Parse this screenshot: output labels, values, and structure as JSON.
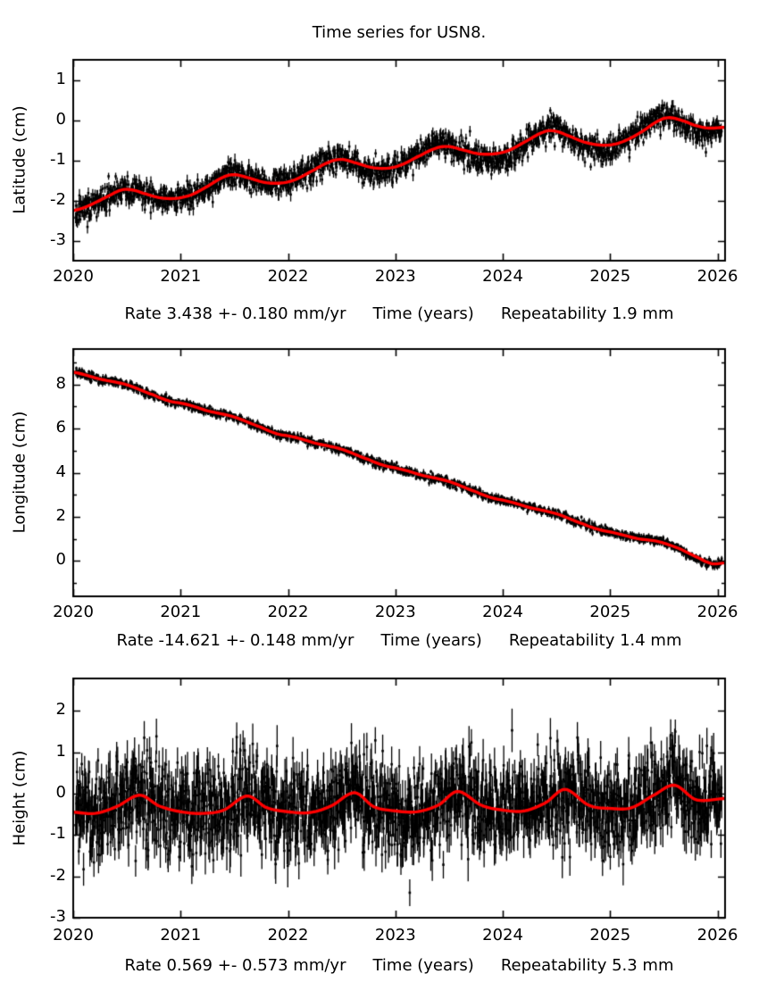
{
  "title": "Time series for USN8.",
  "colors": {
    "data": "#000000",
    "model": "#ff0000",
    "background": "#ffffff",
    "frame": "#000000"
  },
  "chart_data": [
    {
      "type": "scatter",
      "name": "latitude",
      "ylabel": "Latitude (cm)",
      "labels": {
        "rate": "Rate 3.438 +- 0.180 mm/yr",
        "xlabel": "Time (years)",
        "repeatability": "Repeatability 1.9 mm"
      },
      "xlim": [
        2020,
        2026.07
      ],
      "ylim": [
        -3.5,
        1.5
      ],
      "xticks": [
        2020,
        2021,
        2022,
        2023,
        2024,
        2025,
        2026
      ],
      "yticks": [
        1,
        0,
        -1,
        -2,
        -3
      ],
      "yticks_minor": [],
      "grid": false,
      "legend": "none",
      "data_x_range": [
        2020.02,
        2026.04
      ],
      "trend": [
        [
          2020.0,
          -2.25
        ],
        [
          2020.1,
          -2.18
        ],
        [
          2020.2,
          -2.06
        ],
        [
          2020.32,
          -1.9
        ],
        [
          2020.45,
          -1.74
        ],
        [
          2020.55,
          -1.74
        ],
        [
          2020.65,
          -1.82
        ],
        [
          2020.8,
          -1.93
        ],
        [
          2020.95,
          -1.95
        ],
        [
          2021.1,
          -1.86
        ],
        [
          2021.25,
          -1.65
        ],
        [
          2021.4,
          -1.42
        ],
        [
          2021.5,
          -1.36
        ],
        [
          2021.62,
          -1.43
        ],
        [
          2021.78,
          -1.55
        ],
        [
          2021.92,
          -1.57
        ],
        [
          2022.05,
          -1.5
        ],
        [
          2022.2,
          -1.3
        ],
        [
          2022.38,
          -1.05
        ],
        [
          2022.5,
          -0.98
        ],
        [
          2022.62,
          -1.06
        ],
        [
          2022.78,
          -1.18
        ],
        [
          2022.92,
          -1.2
        ],
        [
          2023.05,
          -1.12
        ],
        [
          2023.2,
          -0.92
        ],
        [
          2023.38,
          -0.7
        ],
        [
          2023.5,
          -0.66
        ],
        [
          2023.62,
          -0.74
        ],
        [
          2023.78,
          -0.84
        ],
        [
          2023.92,
          -0.84
        ],
        [
          2024.05,
          -0.76
        ],
        [
          2024.2,
          -0.55
        ],
        [
          2024.38,
          -0.3
        ],
        [
          2024.48,
          -0.27
        ],
        [
          2024.6,
          -0.38
        ],
        [
          2024.75,
          -0.54
        ],
        [
          2024.9,
          -0.62
        ],
        [
          2025.02,
          -0.61
        ],
        [
          2025.15,
          -0.5
        ],
        [
          2025.3,
          -0.28
        ],
        [
          2025.45,
          -0.02
        ],
        [
          2025.55,
          0.06
        ],
        [
          2025.68,
          -0.02
        ],
        [
          2025.8,
          -0.14
        ],
        [
          2025.92,
          -0.2
        ],
        [
          2026.07,
          -0.18
        ]
      ],
      "residual": [
        [
          2020.0,
          -0.05
        ],
        [
          2020.5,
          0.0
        ],
        [
          2021.3,
          -0.05
        ],
        [
          2021.5,
          0.0
        ],
        [
          2022.3,
          0.05
        ],
        [
          2022.55,
          0.0
        ],
        [
          2022.7,
          -0.08
        ],
        [
          2022.85,
          -0.08
        ],
        [
          2023.05,
          0.0
        ],
        [
          2023.3,
          0.08
        ],
        [
          2023.55,
          0.0
        ],
        [
          2023.8,
          -0.1
        ],
        [
          2024.0,
          -0.15
        ],
        [
          2024.2,
          -0.05
        ],
        [
          2024.45,
          0.1
        ],
        [
          2024.6,
          0.0
        ],
        [
          2024.8,
          -0.1
        ],
        [
          2025.0,
          -0.08
        ],
        [
          2025.2,
          0.05
        ],
        [
          2025.5,
          0.08
        ],
        [
          2025.7,
          -0.08
        ],
        [
          2025.85,
          -0.12
        ],
        [
          2026.07,
          -0.05
        ]
      ],
      "render": {
        "n_points": 1800,
        "noise_sigma": 0.16,
        "error_bar_half": 0.13,
        "seed": 11
      }
    },
    {
      "type": "scatter",
      "name": "longitude",
      "ylabel": "Longitude (cm)",
      "labels": {
        "rate": "Rate -14.621 +- 0.148 mm/yr",
        "xlabel": "Time (years)",
        "repeatability": "Repeatability 1.4 mm"
      },
      "xlim": [
        2020,
        2026.07
      ],
      "ylim": [
        -1.6,
        9.6
      ],
      "xticks": [
        2020,
        2021,
        2022,
        2023,
        2024,
        2025,
        2026
      ],
      "yticks": [
        8,
        6,
        4,
        2,
        0
      ],
      "yticks_minor": [
        9,
        7,
        5,
        3,
        1,
        -1
      ],
      "grid": false,
      "legend": "none",
      "data_x_range": [
        2020.02,
        2026.04
      ],
      "trend": [
        [
          2020.0,
          8.55
        ],
        [
          2020.25,
          8.24
        ],
        [
          2020.5,
          7.98
        ],
        [
          2020.75,
          7.52
        ],
        [
          2020.9,
          7.24
        ],
        [
          2021.05,
          7.1
        ],
        [
          2021.25,
          6.8
        ],
        [
          2021.5,
          6.52
        ],
        [
          2021.75,
          6.06
        ],
        [
          2021.9,
          5.76
        ],
        [
          2022.05,
          5.62
        ],
        [
          2022.25,
          5.34
        ],
        [
          2022.5,
          5.06
        ],
        [
          2022.75,
          4.6
        ],
        [
          2022.9,
          4.32
        ],
        [
          2023.05,
          4.16
        ],
        [
          2023.25,
          3.88
        ],
        [
          2023.5,
          3.6
        ],
        [
          2023.75,
          3.14
        ],
        [
          2023.9,
          2.86
        ],
        [
          2024.05,
          2.7
        ],
        [
          2024.25,
          2.42
        ],
        [
          2024.5,
          2.14
        ],
        [
          2024.75,
          1.68
        ],
        [
          2024.9,
          1.42
        ],
        [
          2025.05,
          1.26
        ],
        [
          2025.25,
          1.02
        ],
        [
          2025.45,
          0.88
        ],
        [
          2025.65,
          0.55
        ],
        [
          2025.82,
          0.15
        ],
        [
          2025.95,
          -0.12
        ],
        [
          2026.07,
          -0.08
        ]
      ],
      "residual": [
        [
          2020.0,
          0.0
        ],
        [
          2025.2,
          0.0
        ],
        [
          2025.4,
          0.06
        ],
        [
          2025.6,
          0.0
        ],
        [
          2025.85,
          -0.08
        ],
        [
          2026.07,
          0.0
        ]
      ],
      "render": {
        "n_points": 1800,
        "noise_sigma": 0.09,
        "error_bar_half": 0.11,
        "seed": 22
      }
    },
    {
      "type": "scatter",
      "name": "height",
      "ylabel": "Height (cm)",
      "labels": {
        "rate": "Rate 0.569 +- 0.573 mm/yr",
        "xlabel": "Time (years)",
        "repeatability": "Repeatability 5.3 mm"
      },
      "xlim": [
        2020,
        2026.07
      ],
      "ylim": [
        -3.0,
        2.78
      ],
      "xticks": [
        2020,
        2021,
        2022,
        2023,
        2024,
        2025,
        2026
      ],
      "yticks": [
        2,
        1,
        0,
        -1,
        -2,
        -3
      ],
      "yticks_minor": [],
      "grid": false,
      "legend": "none",
      "data_x_range": [
        2020.02,
        2026.04
      ],
      "trend": [
        [
          2020.0,
          -0.45
        ],
        [
          2020.2,
          -0.48
        ],
        [
          2020.4,
          -0.32
        ],
        [
          2020.62,
          -0.04
        ],
        [
          2020.8,
          -0.3
        ],
        [
          2021.0,
          -0.44
        ],
        [
          2021.2,
          -0.48
        ],
        [
          2021.4,
          -0.4
        ],
        [
          2021.62,
          -0.06
        ],
        [
          2021.8,
          -0.34
        ],
        [
          2022.0,
          -0.44
        ],
        [
          2022.2,
          -0.46
        ],
        [
          2022.4,
          -0.3
        ],
        [
          2022.62,
          0.02
        ],
        [
          2022.8,
          -0.32
        ],
        [
          2023.0,
          -0.42
        ],
        [
          2023.2,
          -0.44
        ],
        [
          2023.4,
          -0.28
        ],
        [
          2023.58,
          0.05
        ],
        [
          2023.8,
          -0.28
        ],
        [
          2024.0,
          -0.4
        ],
        [
          2024.2,
          -0.42
        ],
        [
          2024.4,
          -0.22
        ],
        [
          2024.58,
          0.1
        ],
        [
          2024.8,
          -0.28
        ],
        [
          2025.0,
          -0.36
        ],
        [
          2025.2,
          -0.34
        ],
        [
          2025.42,
          -0.02
        ],
        [
          2025.6,
          0.2
        ],
        [
          2025.8,
          -0.15
        ],
        [
          2026.07,
          -0.12
        ]
      ],
      "residual": [],
      "render": {
        "n_points": 1800,
        "noise_sigma": 0.55,
        "error_bar_half": 0.4,
        "seed": 33
      }
    }
  ]
}
